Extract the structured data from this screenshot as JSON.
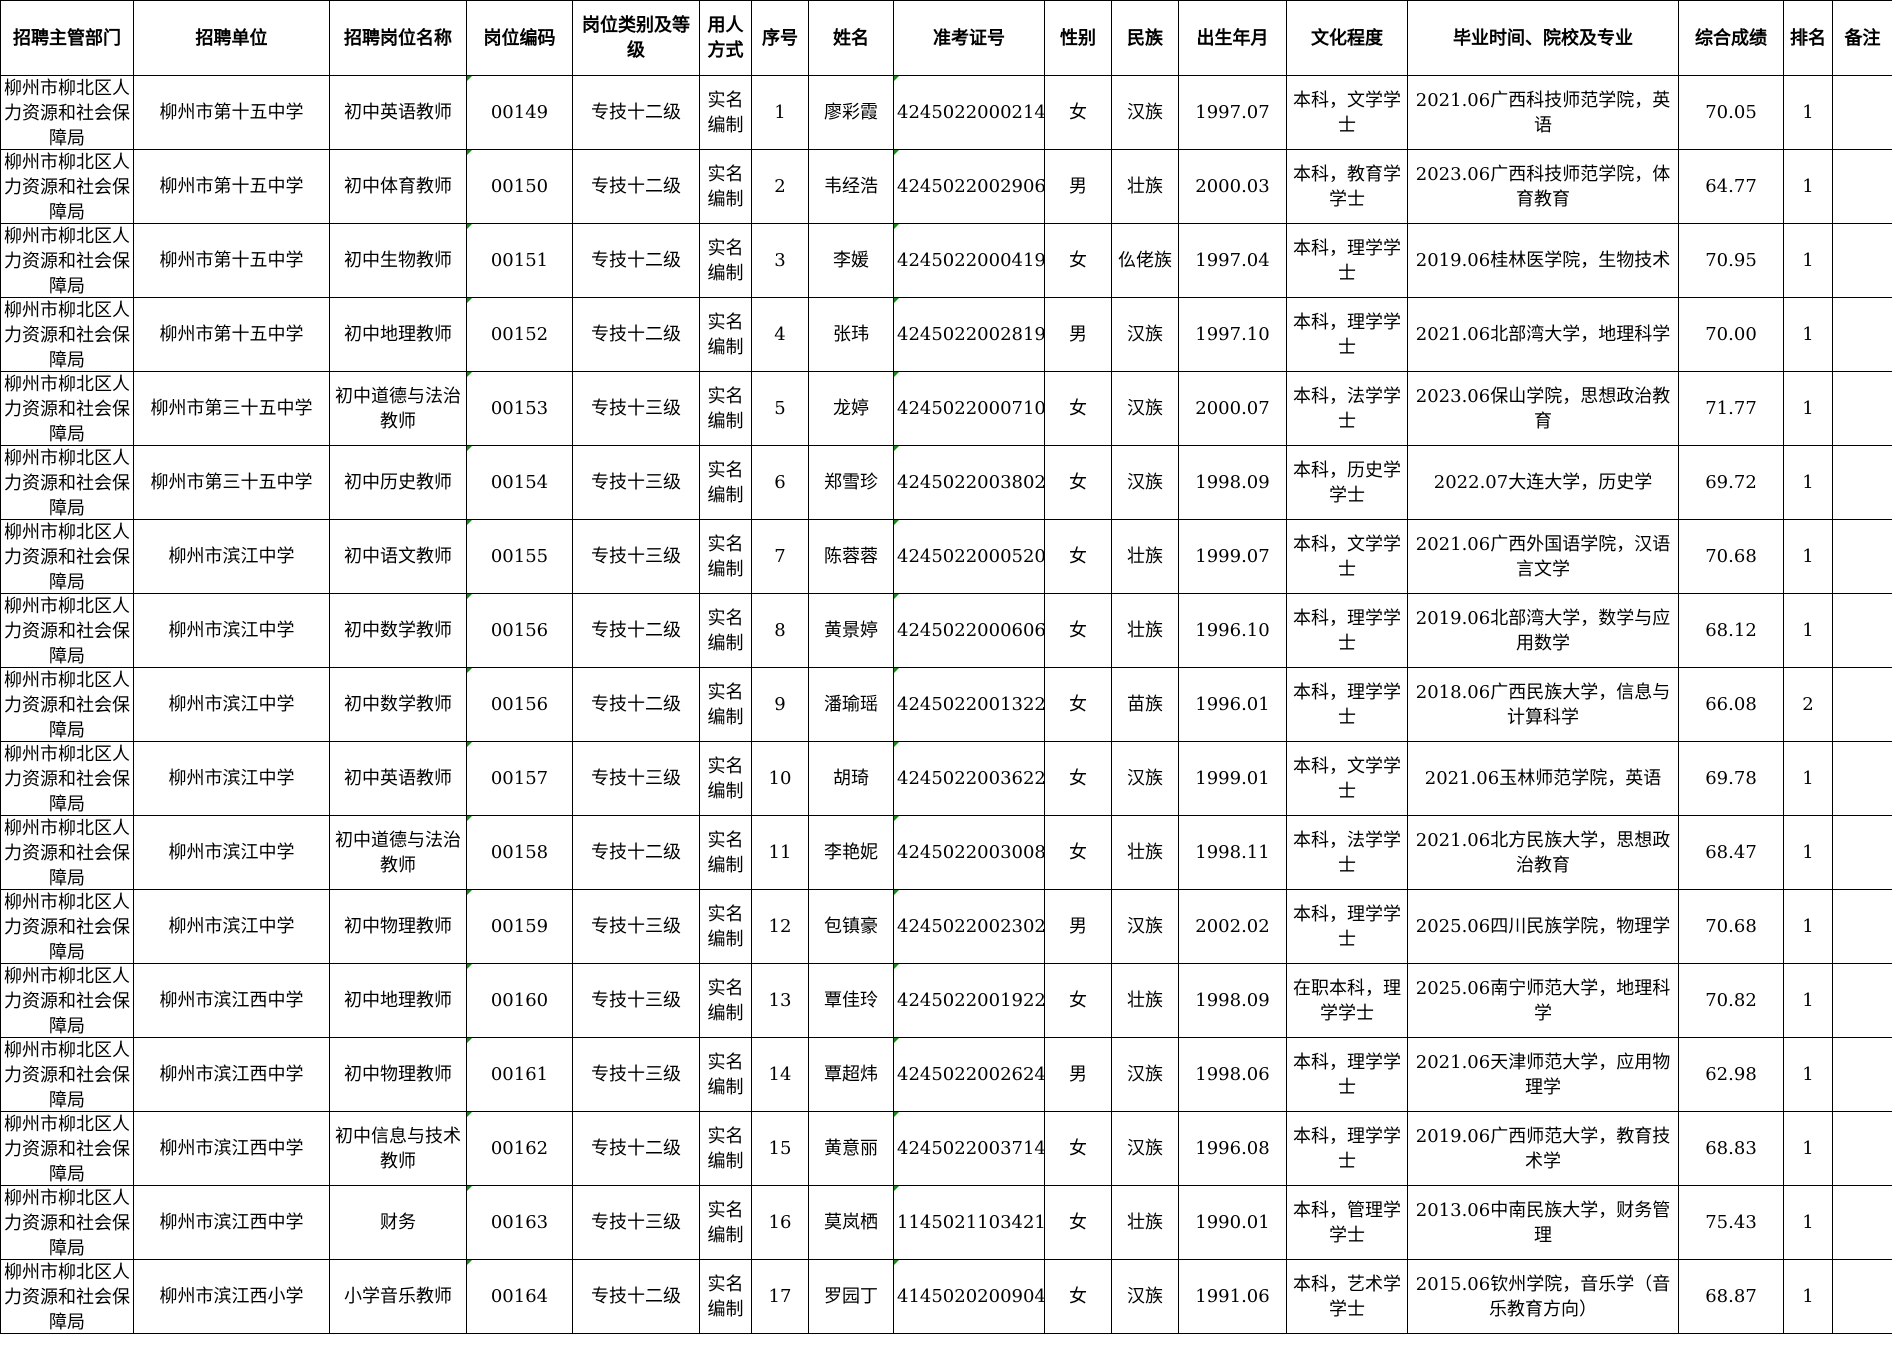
{
  "headers": [
    "招聘主管部门",
    "招聘单位",
    "招聘岗位名称",
    "岗位编码",
    "岗位类别及等级",
    "用人方式",
    "序号",
    "姓名",
    "准考证号",
    "性别",
    "民族",
    "出生年月",
    "文化程度",
    "毕业时间、院校及专业",
    "综合成绩",
    "排名",
    "备注"
  ],
  "rows": [
    [
      "柳州市柳北区人力资源和社会保障局",
      "柳州市第十五中学",
      "初中英语教师",
      "00149",
      "专技十二级",
      "实名编制",
      "1",
      "廖彩霞",
      "4245022000214",
      "女",
      "汉族",
      "1997.07",
      "本科，文学学士",
      "2021.06广西科技师范学院，英语",
      "70.05",
      "1",
      ""
    ],
    [
      "柳州市柳北区人力资源和社会保障局",
      "柳州市第十五中学",
      "初中体育教师",
      "00150",
      "专技十二级",
      "实名编制",
      "2",
      "韦经浩",
      "4245022002906",
      "男",
      "壮族",
      "2000.03",
      "本科，教育学学士",
      "2023.06广西科技师范学院，体育教育",
      "64.77",
      "1",
      ""
    ],
    [
      "柳州市柳北区人力资源和社会保障局",
      "柳州市第十五中学",
      "初中生物教师",
      "00151",
      "专技十二级",
      "实名编制",
      "3",
      "李媛",
      "4245022000419",
      "女",
      "仫佬族",
      "1997.04",
      "本科，理学学士",
      "2019.06桂林医学院，生物技术",
      "70.95",
      "1",
      ""
    ],
    [
      "柳州市柳北区人力资源和社会保障局",
      "柳州市第十五中学",
      "初中地理教师",
      "00152",
      "专技十二级",
      "实名编制",
      "4",
      "张玮",
      "4245022002819",
      "男",
      "汉族",
      "1997.10",
      "本科，理学学士",
      "2021.06北部湾大学，地理科学",
      "70.00",
      "1",
      ""
    ],
    [
      "柳州市柳北区人力资源和社会保障局",
      "柳州市第三十五中学",
      "初中道德与法治教师",
      "00153",
      "专技十三级",
      "实名编制",
      "5",
      "龙婷",
      "4245022000710",
      "女",
      "汉族",
      "2000.07",
      "本科，法学学士",
      "2023.06保山学院，思想政治教育",
      "71.77",
      "1",
      ""
    ],
    [
      "柳州市柳北区人力资源和社会保障局",
      "柳州市第三十五中学",
      "初中历史教师",
      "00154",
      "专技十三级",
      "实名编制",
      "6",
      "郑雪珍",
      "4245022003802",
      "女",
      "汉族",
      "1998.09",
      "本科，历史学学士",
      "2022.07大连大学，历史学",
      "69.72",
      "1",
      ""
    ],
    [
      "柳州市柳北区人力资源和社会保障局",
      "柳州市滨江中学",
      "初中语文教师",
      "00155",
      "专技十三级",
      "实名编制",
      "7",
      "陈蓉蓉",
      "4245022000520",
      "女",
      "壮族",
      "1999.07",
      "本科，文学学士",
      "2021.06广西外国语学院，汉语言文学",
      "70.68",
      "1",
      ""
    ],
    [
      "柳州市柳北区人力资源和社会保障局",
      "柳州市滨江中学",
      "初中数学教师",
      "00156",
      "专技十二级",
      "实名编制",
      "8",
      "黄景婷",
      "4245022000606",
      "女",
      "壮族",
      "1996.10",
      "本科，理学学士",
      "2019.06北部湾大学，数学与应用数学",
      "68.12",
      "1",
      ""
    ],
    [
      "柳州市柳北区人力资源和社会保障局",
      "柳州市滨江中学",
      "初中数学教师",
      "00156",
      "专技十二级",
      "实名编制",
      "9",
      "潘瑜瑶",
      "4245022001322",
      "女",
      "苗族",
      "1996.01",
      "本科，理学学士",
      "2018.06广西民族大学，信息与计算科学",
      "66.08",
      "2",
      ""
    ],
    [
      "柳州市柳北区人力资源和社会保障局",
      "柳州市滨江中学",
      "初中英语教师",
      "00157",
      "专技十三级",
      "实名编制",
      "10",
      "胡琦",
      "4245022003622",
      "女",
      "汉族",
      "1999.01",
      "本科，文学学士",
      "2021.06玉林师范学院，英语",
      "69.78",
      "1",
      ""
    ],
    [
      "柳州市柳北区人力资源和社会保障局",
      "柳州市滨江中学",
      "初中道德与法治教师",
      "00158",
      "专技十二级",
      "实名编制",
      "11",
      "李艳妮",
      "4245022003008",
      "女",
      "壮族",
      "1998.11",
      "本科，法学学士",
      "2021.06北方民族大学，思想政治教育",
      "68.47",
      "1",
      ""
    ],
    [
      "柳州市柳北区人力资源和社会保障局",
      "柳州市滨江中学",
      "初中物理教师",
      "00159",
      "专技十三级",
      "实名编制",
      "12",
      "包镇豪",
      "4245022002302",
      "男",
      "汉族",
      "2002.02",
      "本科，理学学士",
      "2025.06四川民族学院，物理学",
      "70.68",
      "1",
      ""
    ],
    [
      "柳州市柳北区人力资源和社会保障局",
      "柳州市滨江西中学",
      "初中地理教师",
      "00160",
      "专技十三级",
      "实名编制",
      "13",
      "覃佳玲",
      "4245022001922",
      "女",
      "壮族",
      "1998.09",
      "在职本科，理学学士",
      "2025.06南宁师范大学，地理科学",
      "70.82",
      "1",
      ""
    ],
    [
      "柳州市柳北区人力资源和社会保障局",
      "柳州市滨江西中学",
      "初中物理教师",
      "00161",
      "专技十三级",
      "实名编制",
      "14",
      "覃超炜",
      "4245022002624",
      "男",
      "汉族",
      "1998.06",
      "本科，理学学士",
      "2021.06天津师范大学，应用物理学",
      "62.98",
      "1",
      ""
    ],
    [
      "柳州市柳北区人力资源和社会保障局",
      "柳州市滨江西中学",
      "初中信息与技术教师",
      "00162",
      "专技十二级",
      "实名编制",
      "15",
      "黄意丽",
      "4245022003714",
      "女",
      "汉族",
      "1996.08",
      "本科，理学学士",
      "2019.06广西师范大学，教育技术学",
      "68.83",
      "1",
      ""
    ],
    [
      "柳州市柳北区人力资源和社会保障局",
      "柳州市滨江西中学",
      "财务",
      "00163",
      "专技十三级",
      "实名编制",
      "16",
      "莫岚栖",
      "1145021103421",
      "女",
      "壮族",
      "1990.01",
      "本科，管理学学士",
      "2013.06中南民族大学，财务管理",
      "75.43",
      "1",
      ""
    ],
    [
      "柳州市柳北区人力资源和社会保障局",
      "柳州市滨江西小学",
      "小学音乐教师",
      "00164",
      "专技十二级",
      "实名编制",
      "17",
      "罗园丁",
      "4145020200904",
      "女",
      "汉族",
      "1991.06",
      "本科，艺术学学士",
      "2015.06钦州学院，音乐学（音乐教育方向）",
      "68.87",
      "1",
      ""
    ]
  ]
}
